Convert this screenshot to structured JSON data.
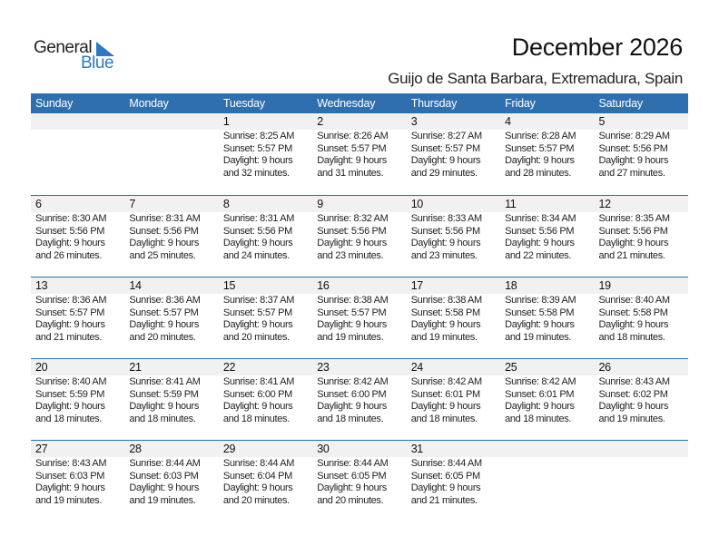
{
  "logo": {
    "word1": "General",
    "word2": "Blue",
    "color": "#2f78c2"
  },
  "title": "December 2026",
  "subtitle": "Guijo de Santa Barbara, Extremadura, Spain",
  "header_color": "#2f6fae",
  "weekdays": [
    "Sunday",
    "Monday",
    "Tuesday",
    "Wednesday",
    "Thursday",
    "Friday",
    "Saturday"
  ],
  "weeks": [
    {
      "days": [
        null,
        null,
        {
          "day": "1",
          "sunrise": "Sunrise: 8:25 AM",
          "sunset": "Sunset: 5:57 PM",
          "daylight1": "Daylight: 9 hours",
          "daylight2": "and 32 minutes."
        },
        {
          "day": "2",
          "sunrise": "Sunrise: 8:26 AM",
          "sunset": "Sunset: 5:57 PM",
          "daylight1": "Daylight: 9 hours",
          "daylight2": "and 31 minutes."
        },
        {
          "day": "3",
          "sunrise": "Sunrise: 8:27 AM",
          "sunset": "Sunset: 5:57 PM",
          "daylight1": "Daylight: 9 hours",
          "daylight2": "and 29 minutes."
        },
        {
          "day": "4",
          "sunrise": "Sunrise: 8:28 AM",
          "sunset": "Sunset: 5:57 PM",
          "daylight1": "Daylight: 9 hours",
          "daylight2": "and 28 minutes."
        },
        {
          "day": "5",
          "sunrise": "Sunrise: 8:29 AM",
          "sunset": "Sunset: 5:56 PM",
          "daylight1": "Daylight: 9 hours",
          "daylight2": "and 27 minutes."
        }
      ]
    },
    {
      "days": [
        {
          "day": "6",
          "sunrise": "Sunrise: 8:30 AM",
          "sunset": "Sunset: 5:56 PM",
          "daylight1": "Daylight: 9 hours",
          "daylight2": "and 26 minutes."
        },
        {
          "day": "7",
          "sunrise": "Sunrise: 8:31 AM",
          "sunset": "Sunset: 5:56 PM",
          "daylight1": "Daylight: 9 hours",
          "daylight2": "and 25 minutes."
        },
        {
          "day": "8",
          "sunrise": "Sunrise: 8:31 AM",
          "sunset": "Sunset: 5:56 PM",
          "daylight1": "Daylight: 9 hours",
          "daylight2": "and 24 minutes."
        },
        {
          "day": "9",
          "sunrise": "Sunrise: 8:32 AM",
          "sunset": "Sunset: 5:56 PM",
          "daylight1": "Daylight: 9 hours",
          "daylight2": "and 23 minutes."
        },
        {
          "day": "10",
          "sunrise": "Sunrise: 8:33 AM",
          "sunset": "Sunset: 5:56 PM",
          "daylight1": "Daylight: 9 hours",
          "daylight2": "and 23 minutes."
        },
        {
          "day": "11",
          "sunrise": "Sunrise: 8:34 AM",
          "sunset": "Sunset: 5:56 PM",
          "daylight1": "Daylight: 9 hours",
          "daylight2": "and 22 minutes."
        },
        {
          "day": "12",
          "sunrise": "Sunrise: 8:35 AM",
          "sunset": "Sunset: 5:56 PM",
          "daylight1": "Daylight: 9 hours",
          "daylight2": "and 21 minutes."
        }
      ]
    },
    {
      "days": [
        {
          "day": "13",
          "sunrise": "Sunrise: 8:36 AM",
          "sunset": "Sunset: 5:57 PM",
          "daylight1": "Daylight: 9 hours",
          "daylight2": "and 21 minutes."
        },
        {
          "day": "14",
          "sunrise": "Sunrise: 8:36 AM",
          "sunset": "Sunset: 5:57 PM",
          "daylight1": "Daylight: 9 hours",
          "daylight2": "and 20 minutes."
        },
        {
          "day": "15",
          "sunrise": "Sunrise: 8:37 AM",
          "sunset": "Sunset: 5:57 PM",
          "daylight1": "Daylight: 9 hours",
          "daylight2": "and 20 minutes."
        },
        {
          "day": "16",
          "sunrise": "Sunrise: 8:38 AM",
          "sunset": "Sunset: 5:57 PM",
          "daylight1": "Daylight: 9 hours",
          "daylight2": "and 19 minutes."
        },
        {
          "day": "17",
          "sunrise": "Sunrise: 8:38 AM",
          "sunset": "Sunset: 5:58 PM",
          "daylight1": "Daylight: 9 hours",
          "daylight2": "and 19 minutes."
        },
        {
          "day": "18",
          "sunrise": "Sunrise: 8:39 AM",
          "sunset": "Sunset: 5:58 PM",
          "daylight1": "Daylight: 9 hours",
          "daylight2": "and 19 minutes."
        },
        {
          "day": "19",
          "sunrise": "Sunrise: 8:40 AM",
          "sunset": "Sunset: 5:58 PM",
          "daylight1": "Daylight: 9 hours",
          "daylight2": "and 18 minutes."
        }
      ]
    },
    {
      "days": [
        {
          "day": "20",
          "sunrise": "Sunrise: 8:40 AM",
          "sunset": "Sunset: 5:59 PM",
          "daylight1": "Daylight: 9 hours",
          "daylight2": "and 18 minutes."
        },
        {
          "day": "21",
          "sunrise": "Sunrise: 8:41 AM",
          "sunset": "Sunset: 5:59 PM",
          "daylight1": "Daylight: 9 hours",
          "daylight2": "and 18 minutes."
        },
        {
          "day": "22",
          "sunrise": "Sunrise: 8:41 AM",
          "sunset": "Sunset: 6:00 PM",
          "daylight1": "Daylight: 9 hours",
          "daylight2": "and 18 minutes."
        },
        {
          "day": "23",
          "sunrise": "Sunrise: 8:42 AM",
          "sunset": "Sunset: 6:00 PM",
          "daylight1": "Daylight: 9 hours",
          "daylight2": "and 18 minutes."
        },
        {
          "day": "24",
          "sunrise": "Sunrise: 8:42 AM",
          "sunset": "Sunset: 6:01 PM",
          "daylight1": "Daylight: 9 hours",
          "daylight2": "and 18 minutes."
        },
        {
          "day": "25",
          "sunrise": "Sunrise: 8:42 AM",
          "sunset": "Sunset: 6:01 PM",
          "daylight1": "Daylight: 9 hours",
          "daylight2": "and 18 minutes."
        },
        {
          "day": "26",
          "sunrise": "Sunrise: 8:43 AM",
          "sunset": "Sunset: 6:02 PM",
          "daylight1": "Daylight: 9 hours",
          "daylight2": "and 19 minutes."
        }
      ]
    },
    {
      "days": [
        {
          "day": "27",
          "sunrise": "Sunrise: 8:43 AM",
          "sunset": "Sunset: 6:03 PM",
          "daylight1": "Daylight: 9 hours",
          "daylight2": "and 19 minutes."
        },
        {
          "day": "28",
          "sunrise": "Sunrise: 8:44 AM",
          "sunset": "Sunset: 6:03 PM",
          "daylight1": "Daylight: 9 hours",
          "daylight2": "and 19 minutes."
        },
        {
          "day": "29",
          "sunrise": "Sunrise: 8:44 AM",
          "sunset": "Sunset: 6:04 PM",
          "daylight1": "Daylight: 9 hours",
          "daylight2": "and 20 minutes."
        },
        {
          "day": "30",
          "sunrise": "Sunrise: 8:44 AM",
          "sunset": "Sunset: 6:05 PM",
          "daylight1": "Daylight: 9 hours",
          "daylight2": "and 20 minutes."
        },
        {
          "day": "31",
          "sunrise": "Sunrise: 8:44 AM",
          "sunset": "Sunset: 6:05 PM",
          "daylight1": "Daylight: 9 hours",
          "daylight2": "and 21 minutes."
        },
        null,
        null
      ]
    }
  ]
}
